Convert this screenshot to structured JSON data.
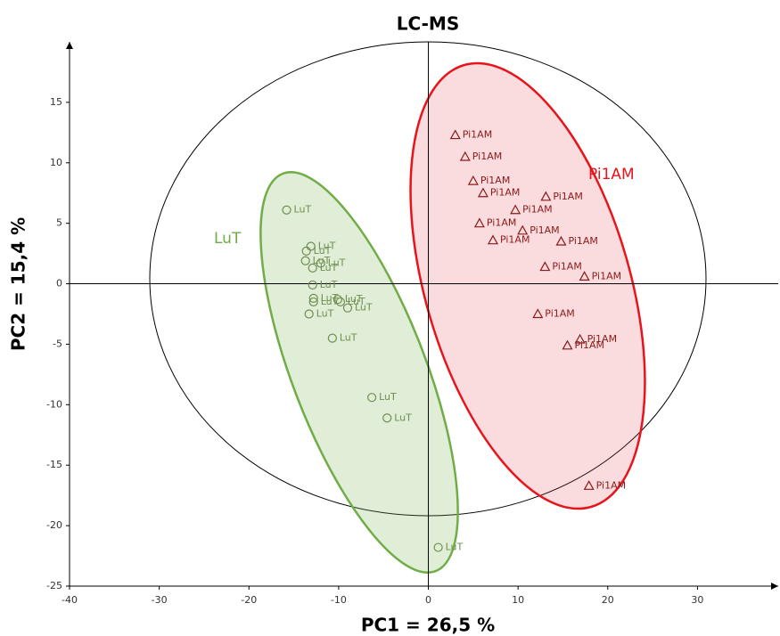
{
  "chart_data": {
    "type": "scatter",
    "title": "LC-MS",
    "x_label": "PC1 = 26,5 %",
    "y_label": "PC2 = 15,4 %",
    "xlim": [
      -40,
      39
    ],
    "ylim": [
      -25,
      20
    ],
    "xticks": [
      -40,
      -30,
      -20,
      -10,
      0,
      10,
      20,
      30
    ],
    "yticks": [
      -25,
      -20,
      -15,
      -10,
      -5,
      0,
      5,
      10,
      15
    ],
    "series": [
      {
        "name": "LuT",
        "color": "#6f8f4f",
        "x": [
          -15.8,
          -13.1,
          -13.6,
          -13.7,
          -12.0,
          -12.9,
          -12.9,
          -12.8,
          -12.8,
          -10.1,
          -9.8,
          -9.0,
          -13.3,
          -10.7,
          -6.3,
          -4.6,
          1.1
        ],
        "values": [
          6.1,
          3.1,
          2.7,
          1.9,
          1.7,
          1.3,
          -0.1,
          -1.2,
          -1.5,
          -1.3,
          -1.5,
          -2.0,
          -2.5,
          -4.5,
          -9.4,
          -11.1,
          -21.8
        ]
      },
      {
        "name": "Pi1AM",
        "color": "#8b1a1a",
        "x": [
          3.0,
          4.1,
          5.0,
          6.1,
          9.7,
          13.1,
          5.7,
          7.2,
          10.5,
          14.8,
          13.0,
          17.4,
          12.2,
          16.9,
          15.5,
          17.9
        ],
        "values": [
          12.3,
          10.5,
          8.5,
          7.5,
          6.1,
          7.2,
          5.0,
          3.6,
          4.4,
          3.5,
          1.4,
          0.6,
          -2.5,
          -4.6,
          -5.1,
          -16.7
        ]
      }
    ]
  }
}
